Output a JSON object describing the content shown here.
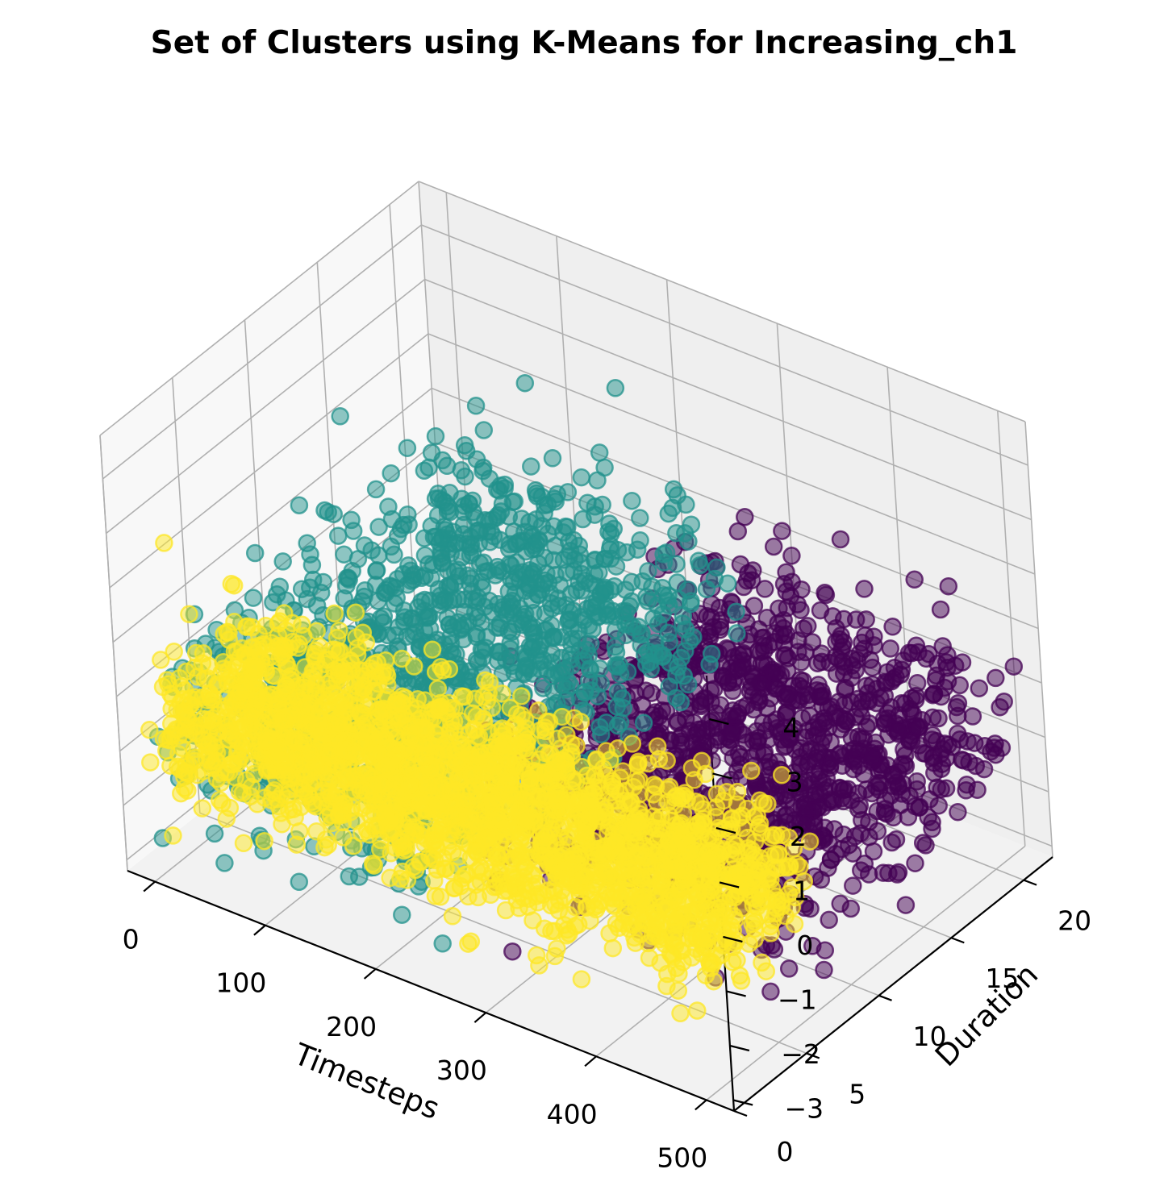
{
  "chart_data": {
    "type": "scatter",
    "projection": "3d",
    "title": "Set of Clusters using K-Means for Increasing_ch1",
    "xlabel": "Timesteps",
    "ylabel": "Duration",
    "zlabel": "",
    "xlim": [
      -25,
      525
    ],
    "ylim": [
      0,
      22
    ],
    "zlim": [
      -3.2,
      4.8
    ],
    "xticks": [
      0,
      100,
      200,
      300,
      400,
      500
    ],
    "xtick_labels": [
      "0",
      "100",
      "200",
      "300",
      "400",
      "500"
    ],
    "yticks": [
      0,
      5,
      10,
      15,
      20
    ],
    "ytick_labels": [
      "0",
      "5",
      "10",
      "15",
      "20"
    ],
    "zticks": [
      -3,
      -2,
      -1,
      0,
      1,
      2,
      3,
      4
    ],
    "ztick_labels": [
      "−3",
      "−2",
      "−1",
      "0",
      "1",
      "2",
      "3",
      "4"
    ],
    "grid": true,
    "legend": false,
    "series": [
      {
        "color": "#440154",
        "x_range": [
          230,
          500
        ],
        "y_range": [
          5,
          22
        ],
        "z_center": -0.8,
        "z_spread": 0.9,
        "outliers": [
          [
            500,
            22,
            0.1
          ],
          [
            300,
            2,
            -2.5
          ]
        ]
      },
      {
        "color": "#21918c",
        "x_range": [
          0,
          250
        ],
        "y_range": [
          0,
          22
        ],
        "z_center": -0.5,
        "z_spread": 0.9,
        "outliers": [
          [
            160,
            21,
            2.7
          ],
          [
            30,
            2,
            -2.5
          ]
        ]
      },
      {
        "color": "#fde725",
        "x_range": [
          0,
          500
        ],
        "y_range": [
          0,
          8
        ],
        "z_center": -0.5,
        "z_spread": 0.6,
        "outliers": [
          [
            0,
            2,
            2.6
          ]
        ]
      }
    ]
  }
}
